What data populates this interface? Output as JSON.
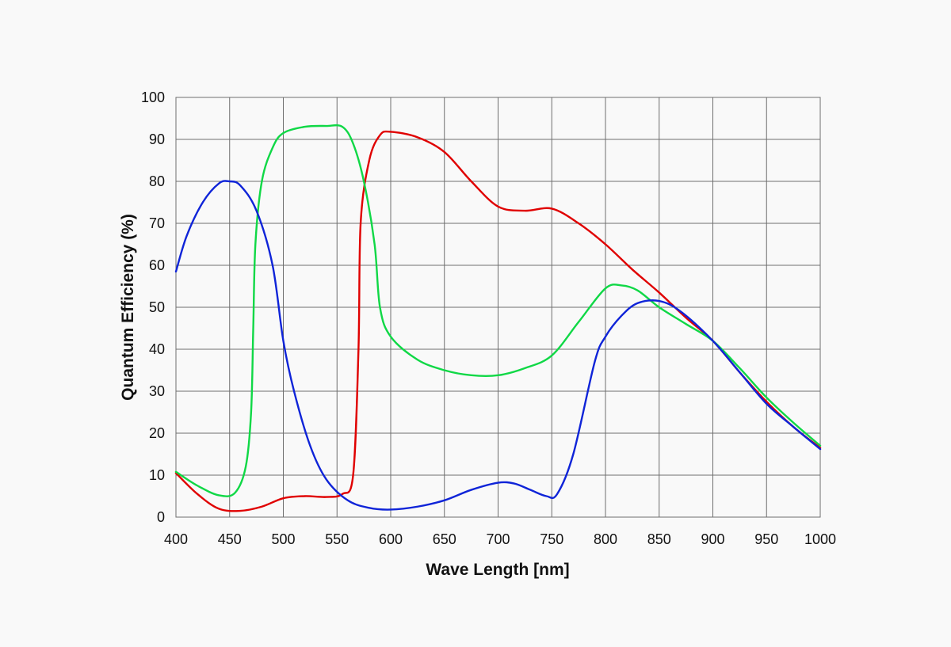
{
  "chart_data": {
    "type": "line",
    "title": "",
    "xlabel": "Wave Length [nm]",
    "ylabel": "Quantum Efficiency (%)",
    "xlim": [
      400,
      1000
    ],
    "ylim": [
      0,
      100
    ],
    "x_ticks": [
      400,
      450,
      500,
      550,
      600,
      650,
      700,
      750,
      800,
      850,
      900,
      950,
      1000
    ],
    "y_ticks": [
      0,
      10,
      20,
      30,
      40,
      50,
      60,
      70,
      80,
      90,
      100
    ],
    "grid": true,
    "legend": "none",
    "series": [
      {
        "color": "#e00000",
        "points": [
          [
            400,
            10.5
          ],
          [
            420,
            5.5
          ],
          [
            440,
            2
          ],
          [
            460,
            1.5
          ],
          [
            480,
            2.5
          ],
          [
            500,
            4.5
          ],
          [
            520,
            5
          ],
          [
            540,
            4.8
          ],
          [
            555,
            5.5
          ],
          [
            565,
            10
          ],
          [
            570,
            40
          ],
          [
            572,
            70
          ],
          [
            580,
            85
          ],
          [
            590,
            91
          ],
          [
            600,
            91.8
          ],
          [
            625,
            90.5
          ],
          [
            650,
            87
          ],
          [
            675,
            80
          ],
          [
            700,
            74
          ],
          [
            725,
            73
          ],
          [
            750,
            73.5
          ],
          [
            775,
            70
          ],
          [
            800,
            65
          ],
          [
            825,
            59
          ],
          [
            850,
            53.5
          ],
          [
            875,
            47.5
          ],
          [
            900,
            42
          ],
          [
            925,
            34.5
          ],
          [
            950,
            27.5
          ],
          [
            975,
            21.5
          ],
          [
            1000,
            16.5
          ]
        ]
      },
      {
        "color": "#10d846",
        "points": [
          [
            400,
            10.8
          ],
          [
            420,
            7.5
          ],
          [
            440,
            5.2
          ],
          [
            455,
            5.8
          ],
          [
            465,
            12
          ],
          [
            470,
            25
          ],
          [
            472,
            45
          ],
          [
            474,
            65
          ],
          [
            480,
            80
          ],
          [
            490,
            88
          ],
          [
            500,
            91.5
          ],
          [
            520,
            93
          ],
          [
            540,
            93.2
          ],
          [
            555,
            93
          ],
          [
            565,
            89
          ],
          [
            575,
            80
          ],
          [
            585,
            65
          ],
          [
            590,
            50
          ],
          [
            600,
            43
          ],
          [
            625,
            37.5
          ],
          [
            650,
            35
          ],
          [
            675,
            33.8
          ],
          [
            700,
            33.8
          ],
          [
            725,
            35.5
          ],
          [
            750,
            38.5
          ],
          [
            775,
            46.5
          ],
          [
            800,
            54.5
          ],
          [
            815,
            55.2
          ],
          [
            830,
            54
          ],
          [
            850,
            50
          ],
          [
            875,
            46
          ],
          [
            900,
            42
          ],
          [
            925,
            35.5
          ],
          [
            950,
            28.5
          ],
          [
            975,
            22.5
          ],
          [
            1000,
            17
          ]
        ]
      },
      {
        "color": "#0f24d8",
        "points": [
          [
            400,
            58.5
          ],
          [
            410,
            67
          ],
          [
            425,
            75
          ],
          [
            440,
            79.5
          ],
          [
            450,
            80
          ],
          [
            460,
            79
          ],
          [
            475,
            73
          ],
          [
            490,
            60
          ],
          [
            500,
            42
          ],
          [
            510,
            30
          ],
          [
            525,
            17
          ],
          [
            540,
            9
          ],
          [
            560,
            4
          ],
          [
            580,
            2.2
          ],
          [
            600,
            1.8
          ],
          [
            625,
            2.5
          ],
          [
            650,
            4
          ],
          [
            675,
            6.5
          ],
          [
            700,
            8.2
          ],
          [
            715,
            8
          ],
          [
            730,
            6.5
          ],
          [
            745,
            5
          ],
          [
            755,
            5.5
          ],
          [
            770,
            15
          ],
          [
            790,
            37
          ],
          [
            800,
            43
          ],
          [
            815,
            48
          ],
          [
            830,
            51
          ],
          [
            850,
            51.5
          ],
          [
            870,
            49
          ],
          [
            900,
            42
          ],
          [
            925,
            34.5
          ],
          [
            950,
            27
          ],
          [
            975,
            21.5
          ],
          [
            1000,
            16.2
          ]
        ]
      }
    ]
  }
}
